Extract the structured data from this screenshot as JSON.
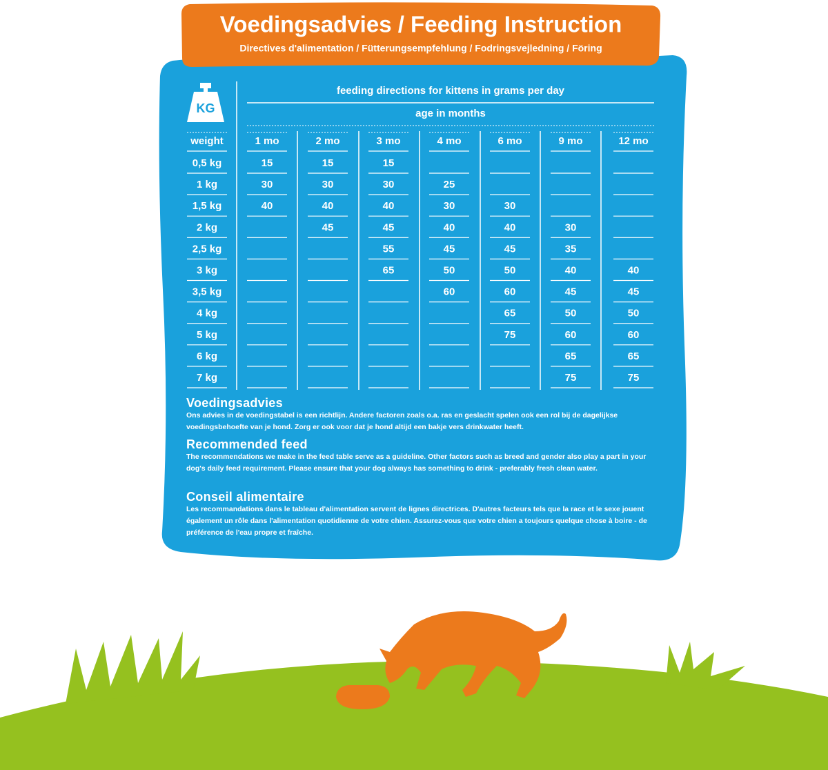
{
  "header": {
    "title": "Voedingsadvies / Feeding Instruction",
    "subtitle": "Directives d'alimentation / Fütterungsempfehlung / Fodringsvejledning / Föring"
  },
  "icon_label": "KG",
  "table": {
    "caption": "feeding directions for kittens in grams per day",
    "subcaption": "age in months",
    "columns": [
      "weight",
      "1 mo",
      "2 mo",
      "3 mo",
      "4 mo",
      "6 mo",
      "9 mo",
      "12 mo"
    ],
    "rows": [
      [
        "0,5 kg",
        15,
        15,
        15,
        null,
        null,
        null,
        null
      ],
      [
        "1 kg",
        30,
        30,
        30,
        25,
        null,
        null,
        null
      ],
      [
        "1,5 kg",
        40,
        40,
        40,
        30,
        30,
        null,
        null
      ],
      [
        "2 kg",
        null,
        45,
        45,
        40,
        40,
        30,
        null
      ],
      [
        "2,5 kg",
        null,
        null,
        55,
        45,
        45,
        35,
        null
      ],
      [
        "3 kg",
        null,
        null,
        65,
        50,
        50,
        40,
        40
      ],
      [
        "3,5 kg",
        null,
        null,
        null,
        60,
        60,
        45,
        45
      ],
      [
        "4 kg",
        null,
        null,
        null,
        null,
        65,
        50,
        50
      ],
      [
        "5 kg",
        null,
        null,
        null,
        null,
        75,
        60,
        60
      ],
      [
        "6 kg",
        null,
        null,
        null,
        null,
        null,
        65,
        65
      ],
      [
        "7 kg",
        null,
        null,
        null,
        null,
        null,
        75,
        75
      ]
    ]
  },
  "sections": [
    {
      "heading": "Voedingsadvies",
      "text": "Ons advies in de voedingstabel is een richtlijn. Andere factoren zoals o.a. ras en geslacht spelen ook een rol bij de dagelijkse voedingsbehoefte van je hond. Zorg er ook voor dat je hond altijd een bakje vers drinkwater heeft."
    },
    {
      "heading": "Recommended feed",
      "text": "The recommendations we make in the feed table serve as a guideline. Other factors such as breed and gender also play a part in your dog's daily feed requirement. Please ensure that your dog always has something to drink - preferably fresh clean water."
    },
    {
      "heading": "Conseil alimentaire",
      "text": "Les recommandations dans le tableau d'alimentation servent de lignes directrices. D'autres facteurs tels que la race et le sexe jouent également un rôle dans l'alimentation quotidienne de votre chien. Assurez-vous que votre chien a toujours quelque chose à boire - de préférence de l'eau propre et fraîche."
    }
  ]
}
